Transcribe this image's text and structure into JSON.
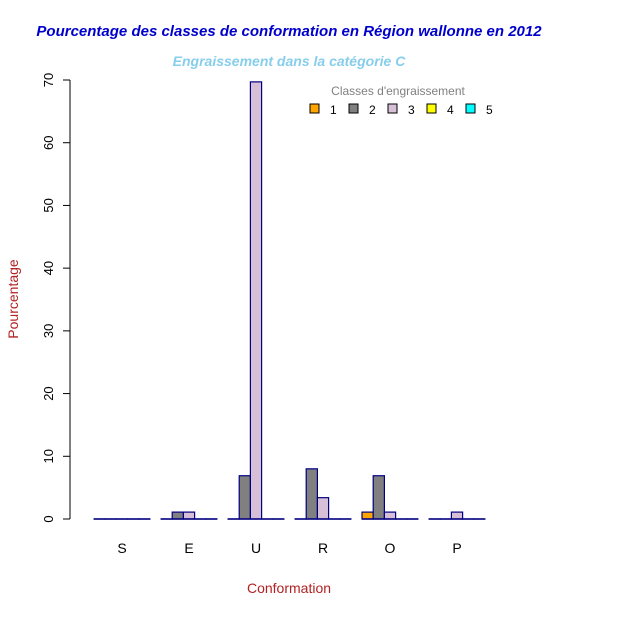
{
  "chart_data": {
    "type": "bar",
    "title": "Pourcentage des classes de conformation en Région wallonne en 2012",
    "subtitle": "Engraissement dans la catégorie C",
    "xlabel": "Conformation",
    "ylabel": "Pourcentage",
    "ylim": [
      0,
      70
    ],
    "yticks": [
      "0",
      "10",
      "20",
      "30",
      "40",
      "50",
      "60",
      "70"
    ],
    "categories": [
      "S",
      "E",
      "U",
      "R",
      "O",
      "P"
    ],
    "legend": {
      "title": "Classes d'engraissement",
      "placement": "top-right"
    },
    "series": [
      {
        "name": "1",
        "color": "#FFA500",
        "values": [
          0,
          0,
          0,
          0,
          1.1,
          0
        ]
      },
      {
        "name": "2",
        "color": "#808080",
        "values": [
          0,
          1.1,
          6.9,
          8.0,
          6.9,
          0
        ]
      },
      {
        "name": "3",
        "color": "#D8BFD8",
        "values": [
          0,
          1.1,
          69.7,
          3.4,
          1.1,
          1.1
        ]
      },
      {
        "name": "4",
        "color": "#FFFF00",
        "values": [
          0,
          0,
          0,
          0,
          0,
          0
        ]
      },
      {
        "name": "5",
        "color": "#00FFFF",
        "values": [
          0,
          0,
          0,
          0,
          0,
          0
        ]
      }
    ],
    "colors": {
      "title": "#0000CD",
      "subtitle": "#87CEEB",
      "axis_label": "#B22222",
      "bar_border": "#000080"
    }
  }
}
